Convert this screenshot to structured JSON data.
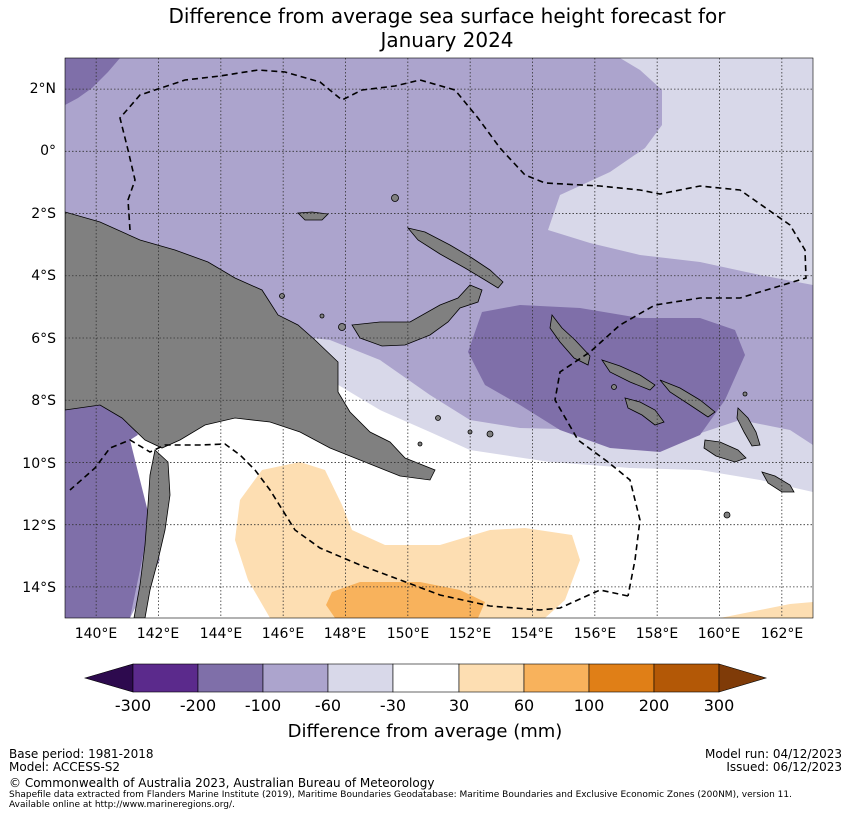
{
  "title": {
    "line1": "Difference from average sea surface height forecast for",
    "line2": "January 2024"
  },
  "map": {
    "lat_labels": [
      "2°N",
      "0°",
      "2°S",
      "4°S",
      "6°S",
      "8°S",
      "10°S",
      "12°S",
      "14°S"
    ],
    "lon_labels": [
      "140°E",
      "142°E",
      "144°E",
      "146°E",
      "148°E",
      "150°E",
      "152°E",
      "154°E",
      "156°E",
      "158°E",
      "160°E",
      "162°E"
    ],
    "lat_range": [
      -15,
      3
    ],
    "lon_range": [
      139,
      163
    ],
    "gridlines": true,
    "colors": {
      "land": "#808080",
      "band_-200_-100": "#7f6fa9",
      "band_-100_-60": "#aca4cd",
      "band_-60_-30": "#d8d8e9",
      "band_-30_30": "#ffffff",
      "band_30_60": "#fddeb2",
      "band_60_100": "#f8b25c"
    }
  },
  "colorbar": {
    "ticks": [
      "-300",
      "-200",
      "-100",
      "-60",
      "-30",
      "30",
      "60",
      "100",
      "200",
      "300"
    ],
    "colors": [
      "#2d0a4e",
      "#5b2a8c",
      "#7f6fa9",
      "#aca4cd",
      "#d8d8e9",
      "#ffffff",
      "#fddeb2",
      "#f8b25c",
      "#e07f17",
      "#b35806",
      "#7f3b08"
    ],
    "label": "Difference from average (mm)"
  },
  "footer": {
    "base_period": "Base period: 1981-2018",
    "model": "Model: ACCESS-S2",
    "model_run": "Model run: 04/12/2023",
    "issued": "Issued: 06/12/2023",
    "copyright": "© Commonwealth of Australia 2023, Australian Bureau of Meteorology",
    "shapefile1": "Shapefile data extracted from Flanders Marine Institute (2019), Maritime Boundaries Geodatabase: Maritime Boundaries and Exclusive Economic Zones (200NM), version 11.",
    "shapefile2": "Available online at http://www.marineregions.org/."
  }
}
